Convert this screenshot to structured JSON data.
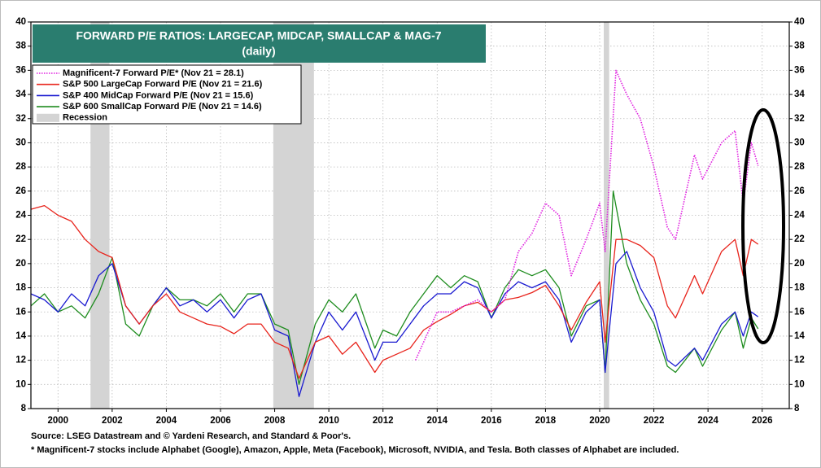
{
  "chart_data": {
    "type": "line",
    "title": "FORWARD P/E RATIOS: LARGECAP, MIDCAP, SMALLCAP & MAG-7",
    "subtitle": "(daily)",
    "xlim": [
      1999,
      2027
    ],
    "xticks": [
      2000,
      2002,
      2004,
      2006,
      2008,
      2010,
      2012,
      2014,
      2016,
      2018,
      2020,
      2022,
      2024,
      2026
    ],
    "ylim": [
      8,
      40
    ],
    "yticks": [
      8,
      10,
      12,
      14,
      16,
      18,
      20,
      22,
      24,
      26,
      28,
      30,
      32,
      34,
      36,
      38,
      40
    ],
    "y2lim": [
      8,
      40
    ],
    "y2ticks": [
      8,
      10,
      12,
      14,
      16,
      18,
      20,
      22,
      24,
      26,
      28,
      30,
      32,
      34,
      36,
      38,
      40
    ],
    "grid": true,
    "legend": "top-left",
    "series": [
      {
        "name": "Magnificent-7 Forward P/E* (Nov 21 = 28.1)",
        "color": "#e020e0",
        "style": "dotted",
        "x": [
          2013.2,
          2013.5,
          2014.0,
          2014.5,
          2015.0,
          2015.5,
          2016.0,
          2016.5,
          2017.0,
          2017.5,
          2018.0,
          2018.5,
          2018.95,
          2019.5,
          2020.0,
          2020.2,
          2020.6,
          2021.0,
          2021.5,
          2022.0,
          2022.5,
          2022.8,
          2023.5,
          2023.8,
          2024.5,
          2025.0,
          2025.3,
          2025.6,
          2025.85
        ],
        "values": [
          12,
          13.5,
          16,
          16,
          16.5,
          17,
          16,
          17,
          21,
          22.5,
          25,
          24,
          19,
          22,
          25,
          21,
          36,
          34,
          32,
          28,
          23,
          22,
          29,
          27,
          30,
          31,
          25,
          30,
          28.1
        ]
      },
      {
        "name": "S&P 500 LargeCap Forward P/E (Nov 21 = 21.6)",
        "color": "#e8241c",
        "style": "solid",
        "x": [
          1999.0,
          1999.5,
          2000.0,
          2000.5,
          2001.0,
          2001.5,
          2002.0,
          2002.5,
          2003.0,
          2003.5,
          2004.0,
          2004.5,
          2005.0,
          2005.5,
          2006.0,
          2006.5,
          2007.0,
          2007.5,
          2008.0,
          2008.5,
          2008.9,
          2009.5,
          2010.0,
          2010.5,
          2011.0,
          2011.7,
          2012.0,
          2012.5,
          2013.0,
          2013.5,
          2014.0,
          2014.5,
          2015.0,
          2015.5,
          2016.0,
          2016.5,
          2017.0,
          2017.5,
          2018.0,
          2018.5,
          2018.95,
          2019.5,
          2020.0,
          2020.2,
          2020.6,
          2021.0,
          2021.5,
          2022.0,
          2022.5,
          2022.8,
          2023.5,
          2023.8,
          2024.5,
          2025.0,
          2025.3,
          2025.6,
          2025.85
        ],
        "values": [
          24.5,
          24.8,
          24,
          23.5,
          22,
          21,
          20.5,
          16.5,
          15,
          16.5,
          17.5,
          16,
          15.5,
          15,
          14.8,
          14.2,
          15,
          15,
          13.5,
          13,
          10.5,
          13.5,
          14,
          12.5,
          13.5,
          11,
          12,
          12.5,
          13,
          14.5,
          15.2,
          15.8,
          16.5,
          16.8,
          16,
          17,
          17.2,
          17.6,
          18.2,
          16.5,
          14.5,
          16.8,
          18.5,
          13.5,
          22,
          22,
          21.5,
          20.5,
          16.5,
          15.5,
          19,
          17.5,
          21,
          22,
          19,
          22,
          21.6
        ]
      },
      {
        "name": "S&P 400 MidCap Forward P/E (Nov 21 = 15.6)",
        "color": "#1a1ad0",
        "style": "solid",
        "x": [
          1999.0,
          1999.5,
          2000.0,
          2000.5,
          2001.0,
          2001.5,
          2002.0,
          2002.5,
          2003.0,
          2003.5,
          2004.0,
          2004.5,
          2005.0,
          2005.5,
          2006.0,
          2006.5,
          2007.0,
          2007.5,
          2008.0,
          2008.5,
          2008.9,
          2009.5,
          2010.0,
          2010.5,
          2011.0,
          2011.7,
          2012.0,
          2012.5,
          2013.0,
          2013.5,
          2014.0,
          2014.5,
          2015.0,
          2015.5,
          2016.0,
          2016.5,
          2017.0,
          2017.5,
          2018.0,
          2018.5,
          2018.95,
          2019.5,
          2020.0,
          2020.2,
          2020.6,
          2021.0,
          2021.5,
          2022.0,
          2022.5,
          2022.8,
          2023.5,
          2023.8,
          2024.5,
          2025.0,
          2025.3,
          2025.6,
          2025.85
        ],
        "values": [
          17.5,
          17,
          16,
          17.5,
          16.5,
          19,
          20,
          16.5,
          15,
          16.5,
          18,
          16.5,
          17,
          16,
          17,
          15.5,
          17,
          17.5,
          14.5,
          14,
          9,
          13.5,
          16,
          14.5,
          16,
          12,
          13.5,
          13.5,
          15,
          16.5,
          17.5,
          17.5,
          18.5,
          18,
          15.5,
          17.5,
          18.5,
          18,
          18.5,
          17,
          13.5,
          16,
          17,
          11,
          20,
          21,
          18,
          16,
          12,
          11.5,
          13,
          12,
          15,
          16,
          14,
          16,
          15.6
        ]
      },
      {
        "name": "S&P 600 SmallCap Forward P/E (Nov 21 = 14.6)",
        "color": "#1e8c1e",
        "style": "solid",
        "x": [
          1999.0,
          1999.5,
          2000.0,
          2000.5,
          2001.0,
          2001.5,
          2002.0,
          2002.5,
          2003.0,
          2003.5,
          2004.0,
          2004.5,
          2005.0,
          2005.5,
          2006.0,
          2006.5,
          2007.0,
          2007.5,
          2008.0,
          2008.5,
          2008.9,
          2009.5,
          2010.0,
          2010.5,
          2011.0,
          2011.7,
          2012.0,
          2012.5,
          2013.0,
          2013.5,
          2014.0,
          2014.5,
          2015.0,
          2015.5,
          2016.0,
          2016.5,
          2017.0,
          2017.5,
          2018.0,
          2018.5,
          2018.95,
          2019.5,
          2020.0,
          2020.2,
          2020.5,
          2021.0,
          2021.5,
          2022.0,
          2022.5,
          2022.8,
          2023.5,
          2023.8,
          2024.5,
          2025.0,
          2025.3,
          2025.6,
          2025.85
        ],
        "values": [
          16.5,
          17.5,
          16,
          16.5,
          15.5,
          17.5,
          20.5,
          15,
          14,
          16.5,
          18,
          17,
          17,
          16.5,
          17.5,
          16,
          17.5,
          17.5,
          15,
          14.5,
          10,
          15,
          17,
          16,
          17.5,
          13,
          14.5,
          14,
          16,
          17.5,
          19,
          18,
          19,
          18.5,
          15.5,
          18,
          19.5,
          19,
          19.5,
          18,
          14,
          16.5,
          17,
          11,
          26,
          20,
          17,
          15,
          11.5,
          11,
          13,
          11.5,
          14.5,
          16,
          13,
          15.5,
          14.6
        ]
      }
    ],
    "recession": {
      "name": "Recession",
      "color": "#d4d4d4",
      "periods": [
        [
          2001.2,
          2001.9
        ],
        [
          2007.95,
          2009.45
        ],
        [
          2020.15,
          2020.35
        ]
      ]
    },
    "source": "Source: LSEG Datastream and © Yardeni Research, and Standard & Poor's.",
    "footnote": "* Magnificent-7 stocks include Alphabet (Google), Amazon, Apple, Meta (Facebook), Microsoft, NVIDIA, and Tesla. Both classes of Alphabet are included."
  }
}
